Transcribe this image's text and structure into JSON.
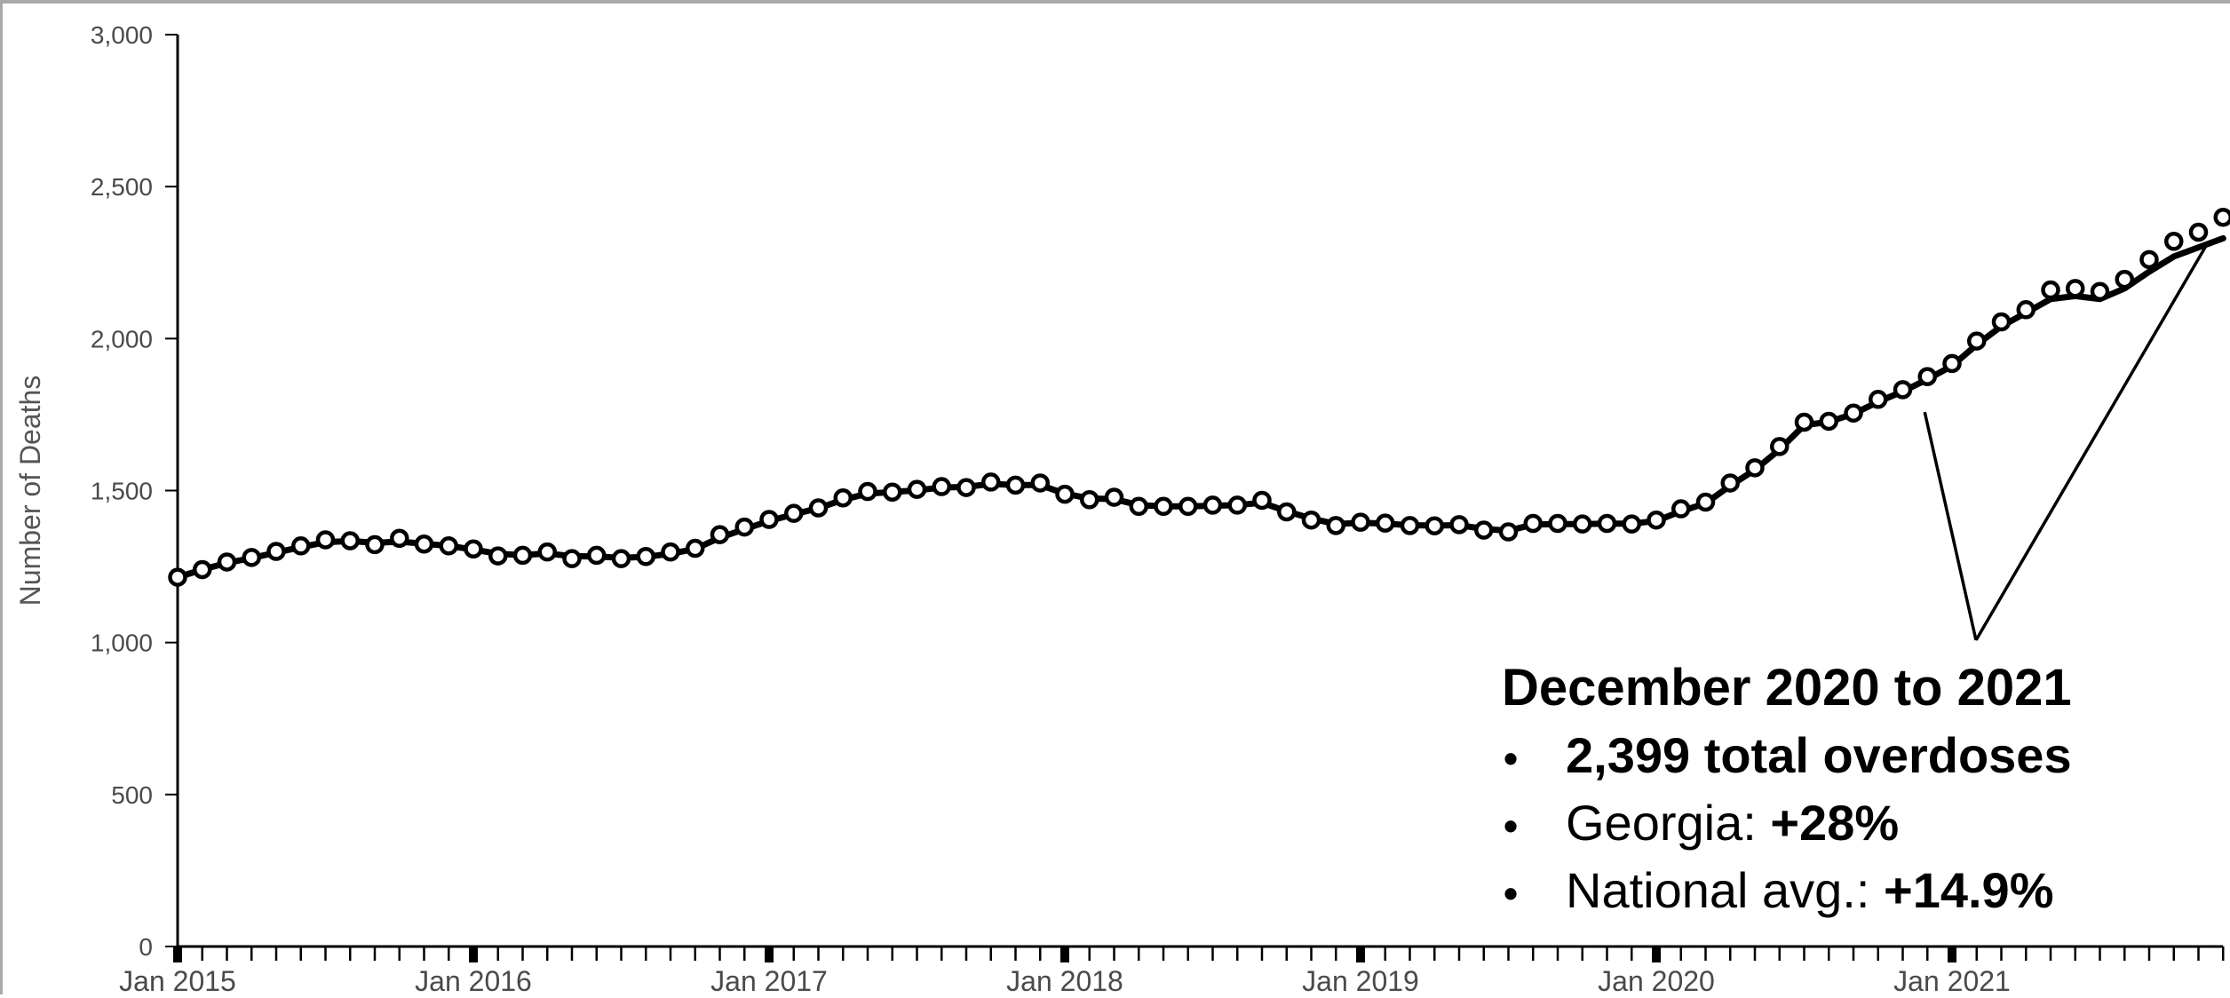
{
  "chart_data": {
    "type": "line",
    "title": "",
    "xlabel": "",
    "ylabel": "Number of Deaths",
    "ylim": [
      0,
      3000
    ],
    "yticks": [
      "0",
      "500",
      "1,000",
      "1,500",
      "2,000",
      "2,500",
      "3,000"
    ],
    "xticks": [
      "Jan 2015",
      "Jan 2016",
      "Jan 2017",
      "Jan 2018",
      "Jan 2019",
      "Jan 2020",
      "Jan 2021"
    ],
    "grid": false,
    "legend": "none",
    "x_start": "2015-01",
    "x_end": "2021-12",
    "series": [
      {
        "style": "markers",
        "values": [
          1215,
          1240,
          1265,
          1280,
          1300,
          1318,
          1338,
          1335,
          1322,
          1343,
          1324,
          1318,
          1308,
          1285,
          1287,
          1298,
          1276,
          1287,
          1276,
          1283,
          1298,
          1310,
          1355,
          1380,
          1405,
          1425,
          1443,
          1476,
          1497,
          1495,
          1504,
          1513,
          1510,
          1528,
          1518,
          1525,
          1488,
          1470,
          1478,
          1448,
          1448,
          1448,
          1452,
          1452,
          1468,
          1430,
          1403,
          1385,
          1396,
          1393,
          1385,
          1384,
          1388,
          1370,
          1364,
          1392,
          1392,
          1390,
          1392,
          1390,
          1403,
          1440,
          1462,
          1525,
          1575,
          1645,
          1725,
          1728,
          1755,
          1800,
          1832,
          1875,
          1918,
          1992,
          2055,
          2095,
          2160,
          2165,
          2155,
          2195,
          2260,
          2320,
          2350,
          2399
        ]
      },
      {
        "style": "line",
        "values": [
          1215,
          1240,
          1262,
          1278,
          1296,
          1314,
          1330,
          1334,
          1328,
          1332,
          1325,
          1318,
          1306,
          1292,
          1288,
          1293,
          1284,
          1283,
          1279,
          1282,
          1292,
          1308,
          1345,
          1373,
          1400,
          1422,
          1442,
          1470,
          1490,
          1495,
          1501,
          1510,
          1512,
          1522,
          1518,
          1518,
          1490,
          1474,
          1472,
          1452,
          1448,
          1448,
          1450,
          1452,
          1460,
          1432,
          1408,
          1390,
          1394,
          1391,
          1386,
          1385,
          1386,
          1374,
          1368,
          1388,
          1390,
          1390,
          1391,
          1391,
          1400,
          1432,
          1458,
          1516,
          1568,
          1635,
          1715,
          1726,
          1752,
          1792,
          1826,
          1866,
          1910,
          1980,
          2040,
          2085,
          2130,
          2140,
          2130,
          2165,
          2220,
          2270,
          2300,
          2330
        ]
      }
    ],
    "annotation": {
      "title": "December 2020 to 2021",
      "bullets": [
        {
          "bold": "2,399 total overdoses",
          "normal": "",
          "tail": ""
        },
        {
          "bold": "",
          "normal": "Georgia:",
          "tail": " +28%"
        },
        {
          "bold": "",
          "normal": "National avg.:",
          "tail": " +14.9%"
        }
      ],
      "bullet_char": "•",
      "callout_from": "2020-12",
      "callout_to": "2021-12"
    },
    "colors": {
      "line": "#000000",
      "marker_stroke": "#000000",
      "marker_fill": "#ffffff",
      "axis": "#000000",
      "frame": "#a9a9a9"
    }
  }
}
